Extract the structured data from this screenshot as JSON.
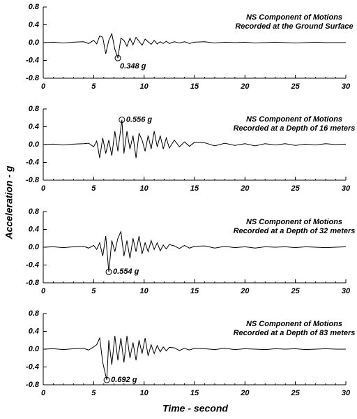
{
  "axis_labels": {
    "x": "Time - second",
    "y": "Acceleration - g"
  },
  "chart_data": [
    {
      "type": "line",
      "title": [
        "NS Component of Motions",
        "Recorded at the Ground Surface"
      ],
      "color": "#000000",
      "xlim": [
        0,
        30
      ],
      "ylim": [
        -0.8,
        0.8
      ],
      "xticks": [
        0,
        5,
        10,
        15,
        20,
        25,
        30
      ],
      "yticks": [
        0.8,
        0.4,
        {
          "value": 0,
          "label": "0.0"
        },
        -0.4,
        -0.8
      ],
      "x": [
        0,
        1,
        2,
        3,
        4,
        4.5,
        5,
        5.3,
        5.6,
        5.9,
        6.2,
        6.5,
        6.8,
        7.1,
        7.4,
        7.7,
        8.0,
        8.3,
        8.6,
        8.9,
        9.2,
        9.5,
        9.8,
        10.1,
        10.4,
        10.7,
        11.0,
        11.3,
        11.6,
        11.9,
        12.2,
        12.5,
        13,
        13.5,
        14,
        14.5,
        15,
        16,
        17,
        18,
        19,
        20,
        21,
        22,
        23,
        24,
        25,
        26,
        27,
        28,
        29,
        30
      ],
      "values": [
        0,
        0.01,
        -0.01,
        0.01,
        0.02,
        -0.02,
        0.05,
        -0.03,
        0.15,
        0.12,
        -0.25,
        0.05,
        0.2,
        -0.15,
        -0.348,
        0.1,
        0.05,
        -0.08,
        0.1,
        -0.05,
        0.12,
        0.03,
        -0.06,
        0.08,
        0.02,
        -0.04,
        0.05,
        -0.03,
        0.02,
        -0.02,
        0.03,
        -0.02,
        0.02,
        -0.01,
        0.02,
        -0.02,
        0.01,
        0.02,
        -0.01,
        0.01,
        0,
        0.01,
        -0.01,
        0,
        0.01,
        0,
        -0.01,
        0,
        0.01,
        0,
        0,
        0
      ],
      "peak": {
        "x": 7.4,
        "y": -0.348,
        "label": "0.348 g"
      }
    },
    {
      "type": "line",
      "title": [
        "NS Component of Motions",
        "Recorded at a Depth of 16 meters"
      ],
      "color": "#000000",
      "xlim": [
        0,
        30
      ],
      "ylim": [
        -0.8,
        0.8
      ],
      "xticks": [
        0,
        5,
        10,
        15,
        20,
        25,
        30
      ],
      "yticks": [
        0.8,
        0.4,
        {
          "value": 0,
          "label": "0.0"
        },
        -0.4,
        -0.8
      ],
      "x": [
        0,
        1,
        2,
        3,
        4,
        4.5,
        5,
        5.3,
        5.6,
        5.9,
        6.2,
        6.5,
        6.8,
        7.1,
        7.4,
        7.8,
        8.0,
        8.3,
        8.6,
        8.9,
        9.2,
        9.5,
        9.8,
        10.1,
        10.4,
        10.7,
        11.0,
        11.3,
        11.6,
        11.9,
        12.2,
        12.5,
        13,
        13.5,
        14,
        14.5,
        15,
        16,
        17,
        18,
        19,
        20,
        21,
        22,
        23,
        24,
        25,
        26,
        27,
        28,
        29,
        30
      ],
      "values": [
        0,
        0.01,
        -0.01,
        0.01,
        0.02,
        0.03,
        -0.05,
        0.08,
        -0.3,
        0.15,
        -0.2,
        0.1,
        -0.25,
        0.3,
        -0.15,
        0.556,
        -0.2,
        0.3,
        -0.1,
        0.2,
        -0.3,
        0.25,
        0.1,
        -0.15,
        0.2,
        -0.1,
        0.3,
        -0.05,
        0.2,
        -0.1,
        0.15,
        -0.08,
        0.1,
        -0.05,
        0.06,
        -0.04,
        0.05,
        0.04,
        -0.03,
        0.03,
        -0.02,
        0.02,
        -0.03,
        0.02,
        -0.01,
        0.02,
        -0.02,
        0.01,
        -0.01,
        0.02,
        0,
        0.01
      ],
      "peak": {
        "x": 7.8,
        "y": 0.556,
        "label": "0.556 g"
      }
    },
    {
      "type": "line",
      "title": [
        "NS Component of Motions",
        "Recorded at a Depth of 32 meters"
      ],
      "color": "#000000",
      "xlim": [
        0,
        30
      ],
      "ylim": [
        -0.8,
        0.8
      ],
      "xticks": [
        0,
        5,
        10,
        15,
        20,
        25,
        30
      ],
      "yticks": [
        0.8,
        0.4,
        {
          "value": 0,
          "label": "0.0"
        },
        -0.4,
        -0.8
      ],
      "x": [
        0,
        1,
        2,
        3,
        4,
        4.5,
        5,
        5.3,
        5.6,
        5.9,
        6.2,
        6.5,
        6.8,
        7.1,
        7.4,
        7.7,
        8.0,
        8.3,
        8.6,
        8.9,
        9.2,
        9.5,
        9.8,
        10.1,
        10.4,
        10.7,
        11.0,
        11.3,
        11.6,
        11.9,
        12.2,
        12.5,
        13,
        13.5,
        14,
        14.5,
        15,
        16,
        17,
        18,
        19,
        20,
        21,
        22,
        23,
        24,
        25,
        26,
        27,
        28,
        29,
        30
      ],
      "values": [
        0,
        0.01,
        -0.01,
        0.01,
        0.02,
        -0.02,
        0.04,
        -0.05,
        0.1,
        -0.2,
        0.25,
        -0.554,
        0.15,
        -0.1,
        0.2,
        0.35,
        -0.2,
        0.15,
        -0.25,
        0.2,
        -0.1,
        0.25,
        -0.15,
        0.1,
        -0.1,
        0.15,
        -0.05,
        0.1,
        -0.08,
        0.05,
        -0.04,
        0.06,
        0.03,
        -0.03,
        0.04,
        -0.02,
        0.02,
        0.03,
        -0.02,
        0.02,
        -0.01,
        0.01,
        -0.02,
        0.01,
        0,
        0.01,
        -0.01,
        0.01,
        0,
        -0.01,
        0,
        0.01
      ],
      "peak": {
        "x": 6.5,
        "y": -0.554,
        "label": "0.554 g"
      }
    },
    {
      "type": "line",
      "title": [
        "NS Component of Motions",
        "Recorded at a Depth of 83 meters"
      ],
      "color": "#000000",
      "xlim": [
        0,
        30
      ],
      "ylim": [
        -0.8,
        0.8
      ],
      "xticks": [
        0,
        5,
        10,
        15,
        20,
        25,
        30
      ],
      "yticks": [
        0.8,
        0.4,
        {
          "value": 0,
          "label": "0.0"
        },
        -0.4,
        -0.8
      ],
      "x": [
        0,
        1,
        2,
        3,
        4,
        4.5,
        5,
        5.3,
        5.6,
        5.9,
        6.3,
        6.5,
        6.8,
        7.1,
        7.4,
        7.7,
        8.0,
        8.3,
        8.6,
        8.9,
        9.2,
        9.5,
        9.8,
        10.1,
        10.4,
        10.7,
        11.0,
        11.3,
        11.6,
        11.9,
        12.2,
        12.5,
        13,
        13.5,
        14,
        14.5,
        15,
        16,
        17,
        18,
        19,
        20,
        21,
        22,
        23,
        24,
        25,
        26,
        27,
        28,
        29,
        30
      ],
      "values": [
        0,
        0.01,
        -0.01,
        0.01,
        0.02,
        -0.02,
        0.05,
        0.1,
        0.25,
        -0.3,
        -0.692,
        0.2,
        -0.35,
        0.3,
        -0.25,
        0.25,
        -0.3,
        0.3,
        -0.2,
        0.15,
        -0.25,
        0.2,
        -0.1,
        0.25,
        -0.15,
        0.1,
        -0.1,
        0.08,
        -0.06,
        0.05,
        -0.04,
        0.04,
        0.03,
        -0.03,
        0.02,
        -0.02,
        0.02,
        0.01,
        -0.01,
        0.02,
        -0.01,
        0.01,
        0,
        -0.01,
        0.01,
        0,
        0.01,
        -0.01,
        0,
        0.01,
        0,
        0
      ],
      "peak": {
        "x": 6.3,
        "y": -0.692,
        "label": "0.692 g"
      }
    }
  ]
}
